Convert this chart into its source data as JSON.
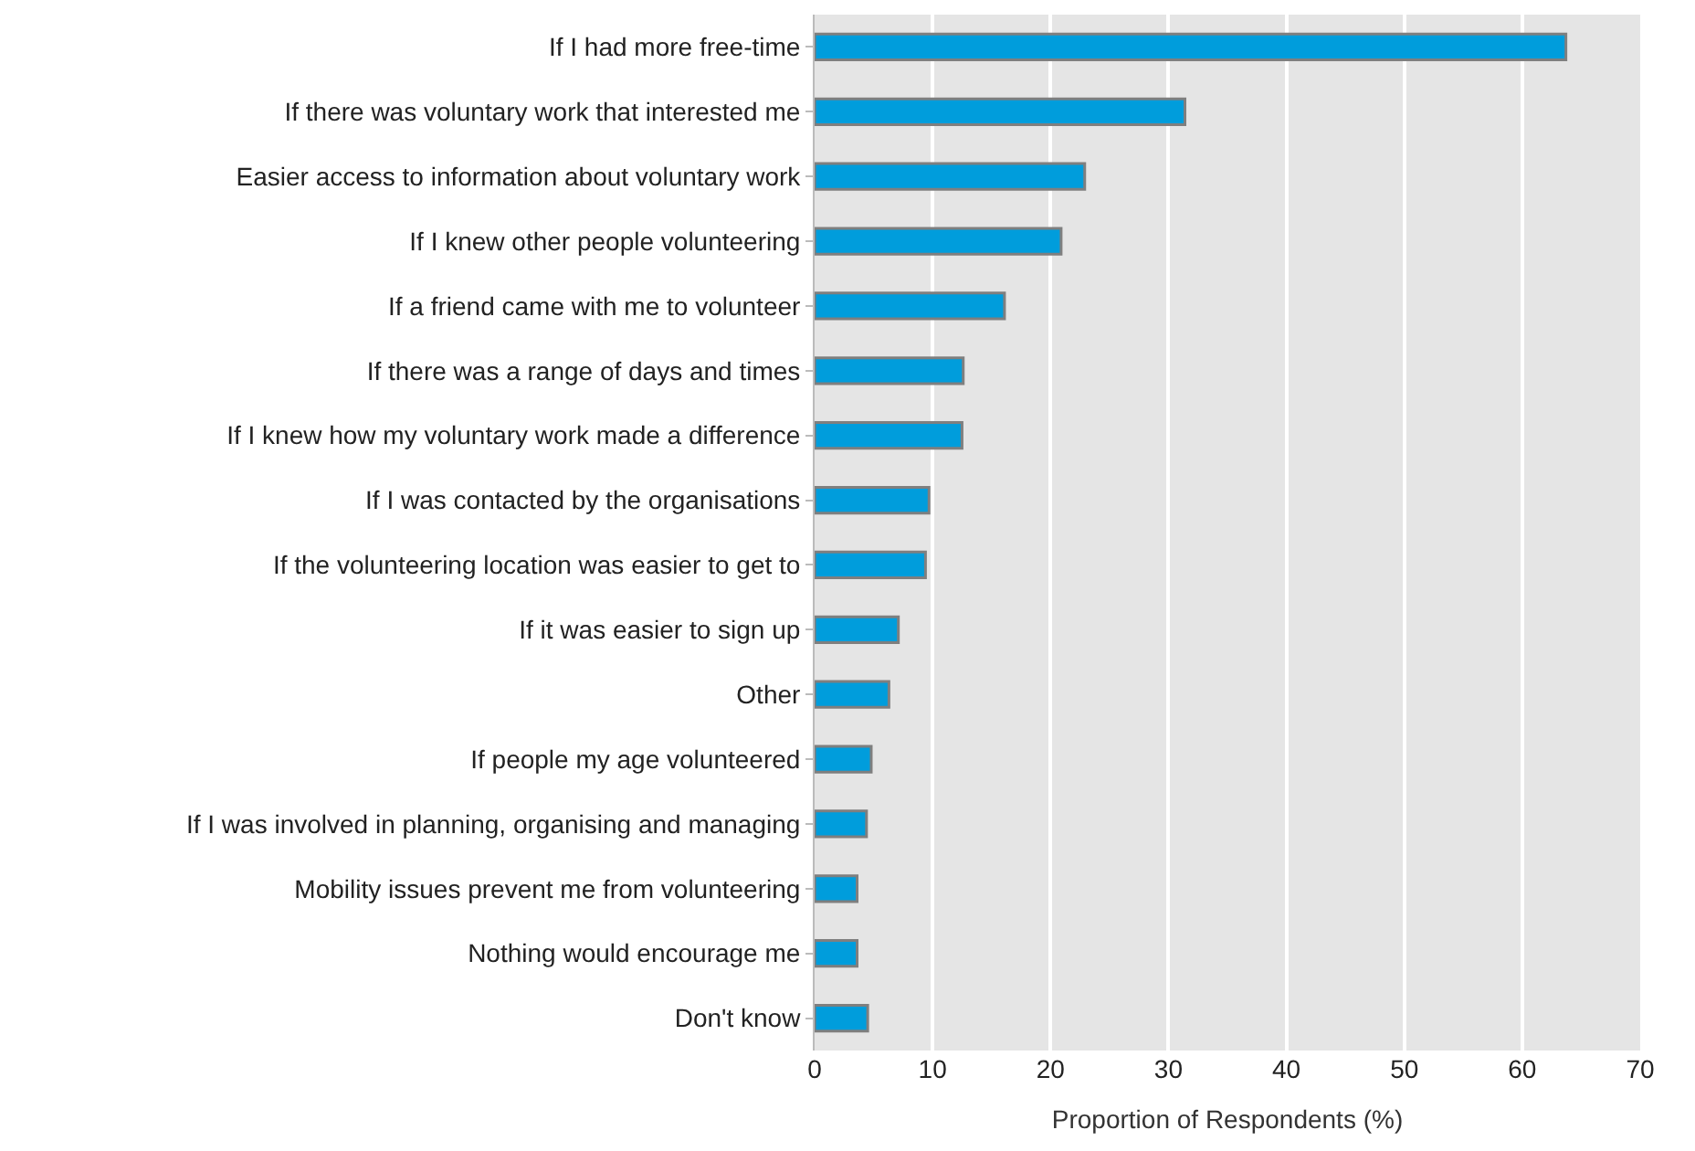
{
  "chart_data": {
    "type": "bar",
    "orientation": "horizontal",
    "xlabel": "Proportion of Respondents (%)",
    "categories": [
      "If I had more free-time",
      "If there was voluntary work that interested me",
      "Easier access to information about voluntary work",
      "If I knew other people volunteering",
      "If a friend came with me to volunteer",
      "If there was a range of days and times",
      "If I knew how my voluntary work made a difference",
      "If I was contacted by the organisations",
      "If the volunteering location was easier to get to",
      "If it was easier to sign up",
      "Other",
      "If people my age volunteered",
      "If I was involved in planning, organising and managing",
      "Mobility issues prevent me from volunteering",
      "Nothing would encourage me",
      "Don't know"
    ],
    "values": [
      63.7,
      31.4,
      22.9,
      20.9,
      16.1,
      12.6,
      12.5,
      9.7,
      9.4,
      7.1,
      6.3,
      4.8,
      4.4,
      3.6,
      3.6,
      4.5
    ],
    "color": "#009ddc",
    "xlim": [
      0,
      70
    ],
    "xticks": [
      0,
      10,
      20,
      30,
      40,
      50,
      60,
      70
    ],
    "grid": "x"
  }
}
